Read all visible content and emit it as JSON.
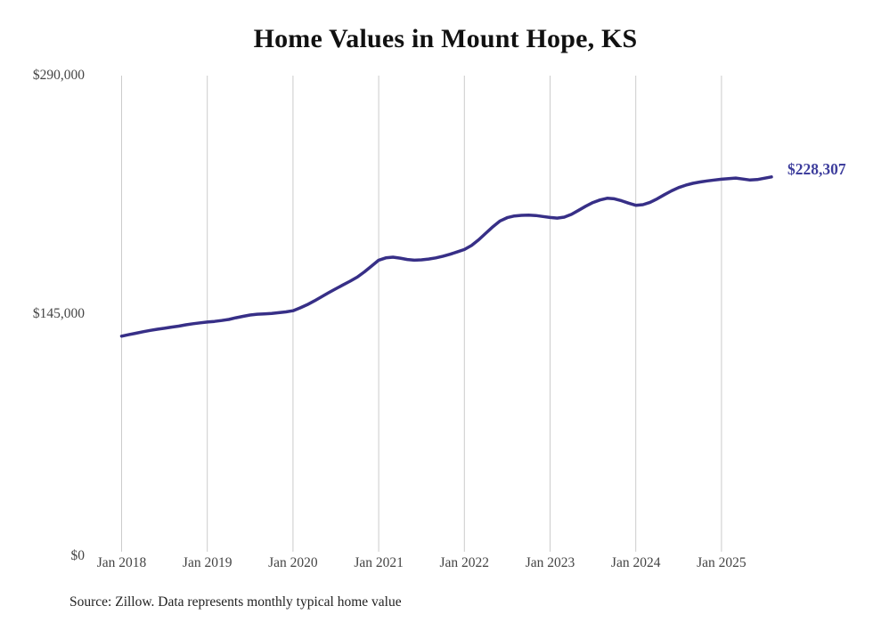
{
  "chart_data": {
    "type": "line",
    "title": "Home Values in Mount Hope, KS",
    "xlabel": "",
    "ylabel": "",
    "ylim": [
      0,
      290000
    ],
    "grid": "vertical-only",
    "legend": "none",
    "y_tick_labels": [
      "$290,000",
      "$145,000",
      "$0"
    ],
    "x_tick_labels": [
      "Jan 2018",
      "Jan 2019",
      "Jan 2020",
      "Jan 2021",
      "Jan 2022",
      "Jan 2023",
      "Jan 2024",
      "Jan 2025"
    ],
    "series_name": "Monthly typical home value",
    "x": [
      "2018-01",
      "2018-02",
      "2018-03",
      "2018-04",
      "2018-05",
      "2018-06",
      "2018-07",
      "2018-08",
      "2018-09",
      "2018-10",
      "2018-11",
      "2018-12",
      "2019-01",
      "2019-02",
      "2019-03",
      "2019-04",
      "2019-05",
      "2019-06",
      "2019-07",
      "2019-08",
      "2019-09",
      "2019-10",
      "2019-11",
      "2019-12",
      "2020-01",
      "2020-02",
      "2020-03",
      "2020-04",
      "2020-05",
      "2020-06",
      "2020-07",
      "2020-08",
      "2020-09",
      "2020-10",
      "2020-11",
      "2020-12",
      "2021-01",
      "2021-02",
      "2021-03",
      "2021-04",
      "2021-05",
      "2021-06",
      "2021-07",
      "2021-08",
      "2021-09",
      "2021-10",
      "2021-11",
      "2021-12",
      "2022-01",
      "2022-02",
      "2022-03",
      "2022-04",
      "2022-05",
      "2022-06",
      "2022-07",
      "2022-08",
      "2022-09",
      "2022-10",
      "2022-11",
      "2022-12",
      "2023-01",
      "2023-02",
      "2023-03",
      "2023-04",
      "2023-05",
      "2023-06",
      "2023-07",
      "2023-08",
      "2023-09",
      "2023-10",
      "2023-11",
      "2023-12",
      "2024-01",
      "2024-02",
      "2024-03",
      "2024-04",
      "2024-05",
      "2024-06",
      "2024-07",
      "2024-08",
      "2024-09",
      "2024-10",
      "2024-11",
      "2024-12",
      "2025-01",
      "2025-02",
      "2025-03",
      "2025-04",
      "2025-05",
      "2025-06",
      "2025-07",
      "2025-08"
    ],
    "values": [
      131300,
      132200,
      133100,
      134000,
      134800,
      135500,
      136100,
      136800,
      137400,
      138200,
      138900,
      139400,
      139900,
      140300,
      140800,
      141500,
      142500,
      143400,
      144200,
      144700,
      144900,
      145100,
      145600,
      146100,
      146800,
      148500,
      150500,
      152800,
      155300,
      157800,
      160200,
      162500,
      164800,
      167300,
      170500,
      174000,
      177600,
      179000,
      179400,
      178800,
      178000,
      177600,
      177800,
      178300,
      179000,
      180000,
      181200,
      182600,
      184100,
      186500,
      190000,
      194000,
      198000,
      201500,
      203500,
      204500,
      204900,
      205000,
      204800,
      204200,
      203600,
      203200,
      203800,
      205500,
      208000,
      210500,
      212700,
      214300,
      215300,
      215000,
      213800,
      212300,
      211000,
      211400,
      212800,
      215000,
      217500,
      219800,
      221800,
      223300,
      224400,
      225200,
      225900,
      226400,
      226900,
      227300,
      227600,
      227000,
      226400,
      226700,
      227500,
      228307
    ],
    "end_label": "$228,307",
    "latest_value": 228307,
    "source_note": "Source: Zillow. Data represents monthly typical home value",
    "colors": {
      "line": "#372f87",
      "end_label": "#3e3e9d",
      "grid": "#cccccc",
      "title": "#111111",
      "tick_text": "#444444",
      "source_text": "#222222"
    }
  }
}
